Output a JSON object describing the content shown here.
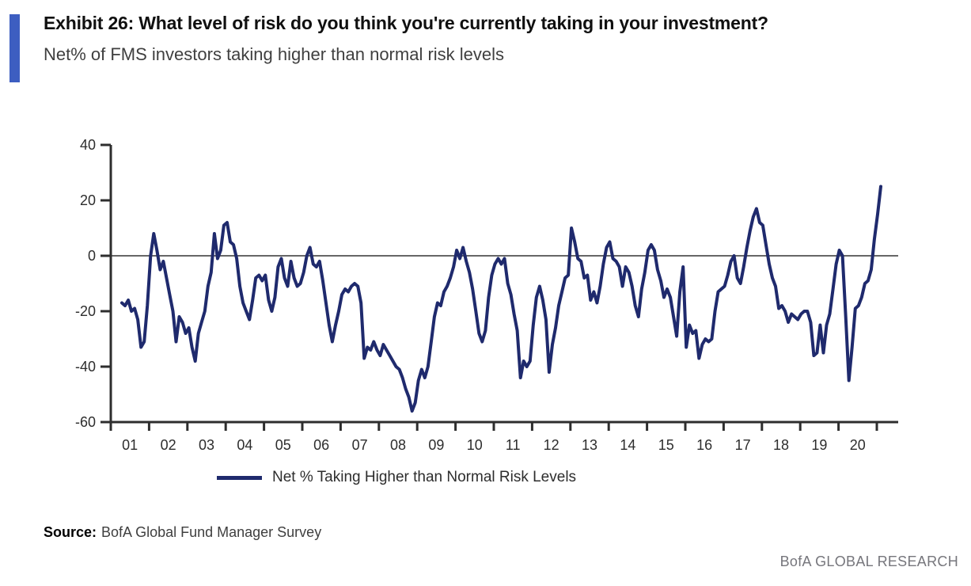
{
  "header": {
    "exhibit_title": "Exhibit 26: What level of risk do you think you're currently taking in your investment?",
    "subtitle": "Net% of FMS investors taking higher than normal risk levels",
    "accent_color": "#3D5EC1"
  },
  "chart_data": {
    "type": "line",
    "title": "Net% of FMS investors taking higher than normal risk levels",
    "frequency": "monthly",
    "x_start": "2001-04",
    "x_end": "2021-02",
    "x_tick_labels": [
      "01",
      "02",
      "03",
      "04",
      "05",
      "06",
      "07",
      "08",
      "09",
      "10",
      "11",
      "12",
      "13",
      "14",
      "15",
      "16",
      "17",
      "18",
      "19",
      "20"
    ],
    "y_ticks": [
      40,
      20,
      0,
      -20,
      -40,
      -60
    ],
    "ylim": [
      -60,
      40
    ],
    "zero_line": true,
    "grid": false,
    "legend_position": "bottom",
    "axis_color": "#2e2e2e",
    "zero_line_color": "#666666",
    "series": [
      {
        "name": "Net % Taking Higher than Normal Risk Levels",
        "color": "#1F2A6D",
        "values": [
          -17,
          -18,
          -16,
          -20,
          -19,
          -23,
          -33,
          -31,
          -18,
          0,
          8,
          2,
          -5,
          -2,
          -8,
          -14,
          -20,
          -31,
          -22,
          -24,
          -28,
          -26,
          -33,
          -38,
          -28,
          -24,
          -20,
          -11,
          -6,
          8,
          -1,
          2,
          11,
          12,
          5,
          4,
          -1,
          -11,
          -17,
          -20,
          -23,
          -16,
          -8,
          -7,
          -9,
          -7,
          -16,
          -20,
          -15,
          -4,
          -1,
          -8,
          -11,
          -2,
          -8,
          -11,
          -10,
          -6,
          0,
          3,
          -3,
          -4,
          -2,
          -9,
          -17,
          -25,
          -31,
          -25,
          -20,
          -14,
          -12,
          -13,
          -11,
          -10,
          -11,
          -17,
          -37,
          -33,
          -34,
          -31,
          -34,
          -36,
          -32,
          -34,
          -36,
          -38,
          -40,
          -41,
          -44,
          -48,
          -51,
          -56,
          -53,
          -45,
          -41,
          -44,
          -40,
          -31,
          -22,
          -17,
          -18,
          -13,
          -11,
          -8,
          -4,
          2,
          -1,
          3,
          -2,
          -6,
          -12,
          -20,
          -28,
          -31,
          -27,
          -15,
          -7,
          -3,
          -1,
          -3,
          -1,
          -10,
          -14,
          -21,
          -27,
          -44,
          -38,
          -40,
          -38,
          -25,
          -15,
          -11,
          -16,
          -23,
          -42,
          -32,
          -26,
          -18,
          -13,
          -8,
          -7,
          10,
          5,
          -1,
          -2,
          -8,
          -7,
          -16,
          -13,
          -17,
          -11,
          -3,
          3,
          5,
          -1,
          -2,
          -4,
          -11,
          -4,
          -6,
          -11,
          -18,
          -22,
          -12,
          -6,
          2,
          4,
          2,
          -5,
          -9,
          -15,
          -12,
          -15,
          -22,
          -29,
          -13,
          -4,
          -33,
          -25,
          -28,
          -27,
          -37,
          -32,
          -30,
          -31,
          -30,
          -20,
          -13,
          -12,
          -11,
          -7,
          -2,
          0,
          -8,
          -10,
          -4,
          3,
          9,
          14,
          17,
          12,
          11,
          4,
          -3,
          -8,
          -11,
          -19,
          -18,
          -20,
          -24,
          -21,
          -22,
          -23,
          -21,
          -20,
          -20,
          -24,
          -36,
          -35,
          -25,
          -35,
          -25,
          -21,
          -12,
          -3,
          2,
          0,
          -22,
          -45,
          -33,
          -19,
          -18,
          -15,
          -10,
          -9,
          -5,
          6,
          15,
          25
        ]
      }
    ]
  },
  "legend": {
    "label": "Net % Taking Higher than Normal Risk Levels",
    "swatch_color": "#1F2A6D"
  },
  "source": {
    "label": "Source:",
    "value": "BofA Global Fund Manager Survey"
  },
  "footer": {
    "text": "BofA GLOBAL RESEARCH"
  }
}
